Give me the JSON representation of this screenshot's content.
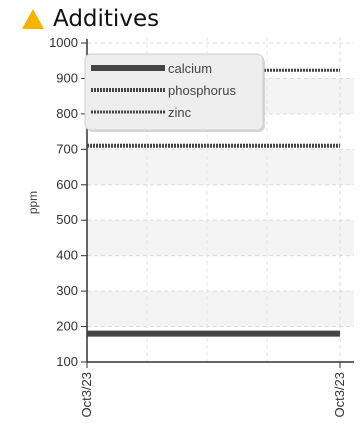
{
  "header": {
    "title": "Additives",
    "icon": "warning-triangle-icon",
    "icon_color": "#f5b400"
  },
  "chart_data": {
    "type": "line",
    "title": "Additives",
    "xlabel": "",
    "ylabel": "ppm",
    "ylim": [
      100,
      1000
    ],
    "yticks": [
      100,
      200,
      300,
      400,
      500,
      600,
      700,
      800,
      900,
      1000
    ],
    "x": [
      "Oct3/23",
      "Oct3/23"
    ],
    "grid": true,
    "legend_position": "top-left",
    "series": [
      {
        "name": "calcium",
        "values": [
          180,
          180
        ],
        "color": "#444444",
        "style": "solid"
      },
      {
        "name": "phosphorus",
        "values": [
          710,
          710
        ],
        "color": "#444444",
        "style": "dotted"
      },
      {
        "name": "zinc",
        "values": [
          923,
          923
        ],
        "color": "#444444",
        "style": "dotted-thin"
      }
    ]
  }
}
